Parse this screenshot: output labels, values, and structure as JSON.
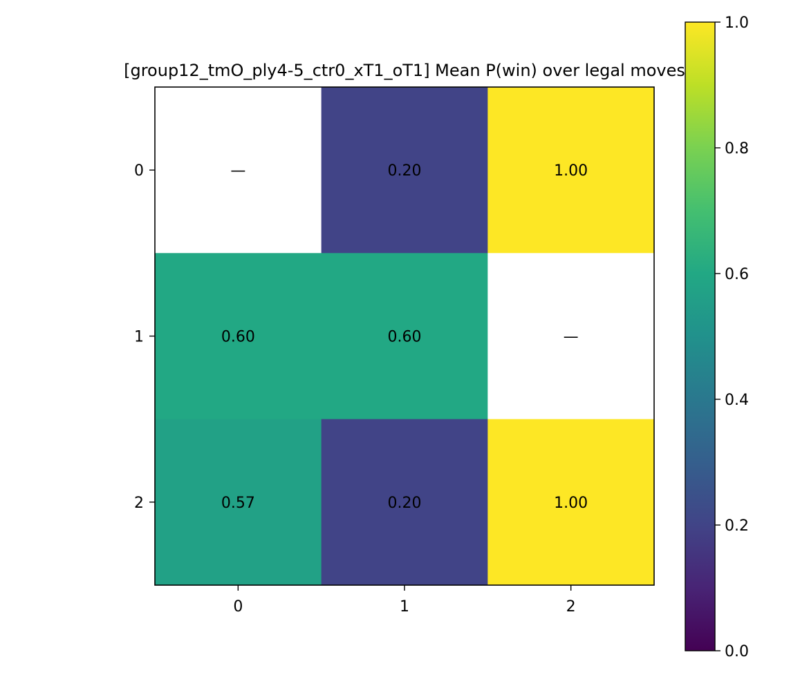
{
  "chart_data": {
    "type": "heatmap",
    "title": "[group12_tmO_ply4-5_ctr0_xT1_oT1] Mean P(win) over legal moves",
    "rows": [
      "0",
      "1",
      "2"
    ],
    "cols": [
      "0",
      "1",
      "2"
    ],
    "values": [
      [
        null,
        0.2,
        1.0
      ],
      [
        0.6,
        0.6,
        null
      ],
      [
        0.57,
        0.2,
        1.0
      ]
    ],
    "labels": [
      [
        "—",
        "0.20",
        "1.00"
      ],
      [
        "0.60",
        "0.60",
        "—"
      ],
      [
        "0.57",
        "0.20",
        "1.00"
      ]
    ],
    "missing_color": "#ffffff",
    "colormap": "viridis",
    "vmin": 0.0,
    "vmax": 1.0,
    "colorbar_ticks": [
      "0.0",
      "0.2",
      "0.4",
      "0.6",
      "0.8",
      "1.0"
    ],
    "xlabel": "",
    "ylabel": ""
  }
}
